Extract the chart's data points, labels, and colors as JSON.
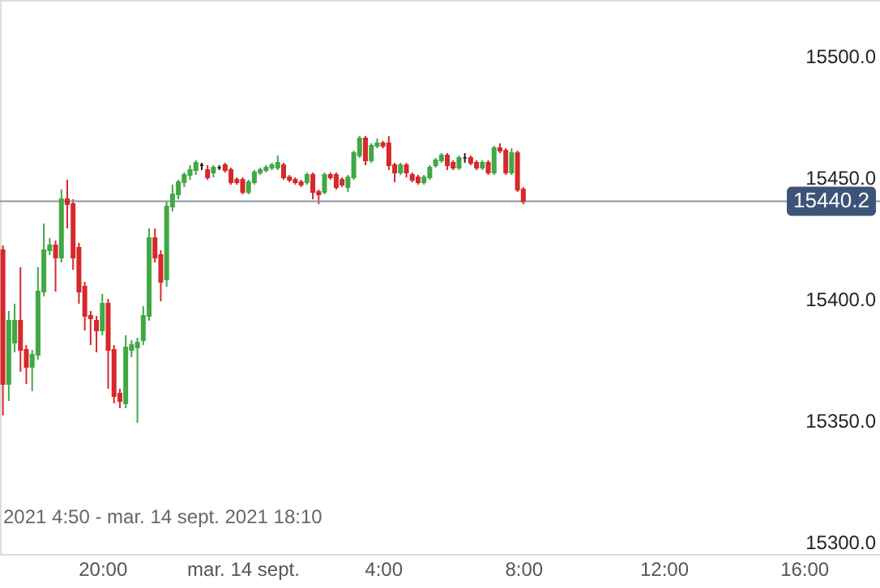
{
  "chart_data": {
    "type": "candlestick",
    "x": [
      "2021-09-13T17:10",
      "2021-09-13T17:20",
      "2021-09-13T17:30",
      "2021-09-13T17:40",
      "2021-09-13T17:50",
      "2021-09-13T18:00",
      "2021-09-13T18:10",
      "2021-09-13T18:20",
      "2021-09-13T18:30",
      "2021-09-13T18:40",
      "2021-09-13T18:50",
      "2021-09-13T19:00",
      "2021-09-13T19:10",
      "2021-09-13T19:20",
      "2021-09-13T19:30",
      "2021-09-13T19:40",
      "2021-09-13T19:50",
      "2021-09-13T20:00",
      "2021-09-13T20:10",
      "2021-09-13T20:20",
      "2021-09-13T20:30",
      "2021-09-13T20:40",
      "2021-09-13T20:50",
      "2021-09-13T21:00",
      "2021-09-13T21:10",
      "2021-09-13T21:20",
      "2021-09-13T21:30",
      "2021-09-13T21:40",
      "2021-09-13T21:50",
      "2021-09-13T22:00",
      "2021-09-13T22:10",
      "2021-09-13T22:20",
      "2021-09-13T22:30",
      "2021-09-13T22:40",
      "2021-09-13T22:50",
      "2021-09-13T23:00",
      "2021-09-13T23:10",
      "2021-09-13T23:20",
      "2021-09-13T23:30",
      "2021-09-13T23:40",
      "2021-09-13T23:50",
      "2021-09-14T00:00",
      "2021-09-14T00:10",
      "2021-09-14T00:20",
      "2021-09-14T00:30",
      "2021-09-14T00:40",
      "2021-09-14T00:50",
      "2021-09-14T01:00",
      "2021-09-14T01:10",
      "2021-09-14T01:20",
      "2021-09-14T01:30",
      "2021-09-14T01:40",
      "2021-09-14T01:50",
      "2021-09-14T02:00",
      "2021-09-14T02:10",
      "2021-09-14T02:20",
      "2021-09-14T02:30",
      "2021-09-14T02:40",
      "2021-09-14T02:50",
      "2021-09-14T03:00",
      "2021-09-14T03:10",
      "2021-09-14T03:20",
      "2021-09-14T03:30",
      "2021-09-14T03:40",
      "2021-09-14T03:50",
      "2021-09-14T04:00",
      "2021-09-14T04:10",
      "2021-09-14T04:20",
      "2021-09-14T04:30",
      "2021-09-14T04:40",
      "2021-09-14T04:50",
      "2021-09-14T05:00",
      "2021-09-14T05:10",
      "2021-09-14T05:20",
      "2021-09-14T05:30",
      "2021-09-14T05:40",
      "2021-09-14T05:50",
      "2021-09-14T06:00",
      "2021-09-14T06:10",
      "2021-09-14T06:20",
      "2021-09-14T06:30",
      "2021-09-14T06:40",
      "2021-09-14T06:50",
      "2021-09-14T07:00",
      "2021-09-14T07:10",
      "2021-09-14T07:20",
      "2021-09-14T07:30",
      "2021-09-14T07:40",
      "2021-09-14T07:50",
      "2021-09-14T08:00"
    ],
    "ohlc": [
      [
        15420,
        15422,
        15352,
        15365
      ],
      [
        15365,
        15395,
        15358,
        15391
      ],
      [
        15382,
        15398,
        15378,
        15391
      ],
      [
        15391,
        15413,
        15370,
        15379
      ],
      [
        15379,
        15381,
        15365,
        15372
      ],
      [
        15372,
        15379,
        15362,
        15377
      ],
      [
        15377,
        15413,
        15375,
        15403
      ],
      [
        15403,
        15431,
        15401,
        15420
      ],
      [
        15420,
        15425,
        15418,
        15422
      ],
      [
        15422,
        15424,
        15403,
        15417
      ],
      [
        15417,
        15445,
        15415,
        15441
      ],
      [
        15441,
        15449,
        15429,
        15439
      ],
      [
        15439,
        15441,
        15412,
        15417
      ],
      [
        15421,
        15423,
        15398,
        15403
      ],
      [
        15405,
        15407,
        15387,
        15393
      ],
      [
        15393,
        15395,
        15381,
        15392
      ],
      [
        15391,
        15393,
        15378,
        15387
      ],
      [
        15387,
        15402,
        15385,
        15398
      ],
      [
        15398,
        15400,
        15363,
        15379
      ],
      [
        15379,
        15381,
        15357,
        15360
      ],
      [
        15361,
        15363,
        15355,
        15358
      ],
      [
        15357,
        15385,
        15355,
        15380
      ],
      [
        15379,
        15383,
        15376,
        15381
      ],
      [
        15380,
        15384,
        15349,
        15382
      ],
      [
        15383,
        15397,
        15381,
        15393
      ],
      [
        15393,
        15429,
        15391,
        15425
      ],
      [
        15425,
        15429,
        15415,
        15417
      ],
      [
        15418,
        15420,
        15399,
        15407
      ],
      [
        15408,
        15440,
        15405,
        15438
      ],
      [
        15438,
        15447,
        15436,
        15443
      ],
      [
        15443,
        15449,
        15441,
        15448
      ],
      [
        15448,
        15452,
        15446,
        15451
      ],
      [
        15451,
        15455,
        15449,
        15453
      ],
      [
        15453,
        15457,
        15451,
        15456
      ],
      [
        15455,
        15456,
        15453,
        15455
      ],
      [
        15453,
        15455,
        15449,
        15450
      ],
      [
        15452,
        15455,
        15450,
        15454
      ],
      [
        15454,
        15455,
        15453,
        15454
      ],
      [
        15455,
        15456,
        15452,
        15453
      ],
      [
        15453,
        15454,
        15447,
        15448
      ],
      [
        15449,
        15450,
        15447,
        15448
      ],
      [
        15449,
        15450,
        15443,
        15444
      ],
      [
        15444,
        15449,
        15443,
        15448
      ],
      [
        15448,
        15453,
        15447,
        15452
      ],
      [
        15452,
        15454,
        15451,
        15453
      ],
      [
        15453,
        15455,
        15452,
        15454
      ],
      [
        15454,
        15456,
        15453,
        15455
      ],
      [
        15454,
        15459,
        15453,
        15456
      ],
      [
        15455,
        15456,
        15449,
        15450
      ],
      [
        15450,
        15451,
        15448,
        15449
      ],
      [
        15449,
        15450,
        15447,
        15448
      ],
      [
        15448,
        15449,
        15446,
        15447
      ],
      [
        15448,
        15452,
        15447,
        15451
      ],
      [
        15451,
        15452,
        15441,
        15444
      ],
      [
        15444,
        15445,
        15439,
        15443
      ],
      [
        15444,
        15452,
        15443,
        15451
      ],
      [
        15451,
        15452,
        15449,
        15450
      ],
      [
        15451,
        15452,
        15445,
        15446
      ],
      [
        15449,
        15450,
        15446,
        15447
      ],
      [
        15446,
        15451,
        15444,
        15450
      ],
      [
        15450,
        15461,
        15449,
        15460
      ],
      [
        15459,
        15467,
        15458,
        15466
      ],
      [
        15466,
        15467,
        15455,
        15457
      ],
      [
        15457,
        15464,
        15456,
        15463
      ],
      [
        15463,
        15466,
        15462,
        15464
      ],
      [
        15464,
        15465,
        15462,
        15463
      ],
      [
        15464,
        15467,
        15453,
        15455
      ],
      [
        15455,
        15456,
        15448,
        15452
      ],
      [
        15452,
        15456,
        15451,
        15455
      ],
      [
        15455,
        15456,
        15450,
        15452
      ],
      [
        15451,
        15452,
        15448,
        15449
      ],
      [
        15450,
        15451,
        15447,
        15448
      ],
      [
        15448,
        15451,
        15447,
        15450
      ],
      [
        15450,
        15455,
        15449,
        15454
      ],
      [
        15455,
        15458,
        15454,
        15457
      ],
      [
        15457,
        15460,
        15456,
        15459
      ],
      [
        15459,
        15460,
        15453,
        15455
      ],
      [
        15456,
        15457,
        15453,
        15454
      ],
      [
        15454,
        15459,
        15453,
        15458
      ],
      [
        15458,
        15460,
        15456,
        15458
      ],
      [
        15458,
        15459,
        15455,
        15456
      ],
      [
        15456,
        15457,
        15453,
        15454
      ],
      [
        15454,
        15457,
        15453,
        15456
      ],
      [
        15456,
        15457,
        15451,
        15452
      ],
      [
        15452,
        15463,
        15451,
        15462
      ],
      [
        15462,
        15464,
        15460,
        15461
      ],
      [
        15461,
        15462,
        15451,
        15452
      ],
      [
        15452,
        15462,
        15451,
        15460
      ],
      [
        15460,
        15461,
        15444,
        15445
      ],
      [
        15445,
        15446,
        15439,
        15440.2
      ]
    ],
    "colors": [
      "#d7282b",
      "#41a844",
      "#41a844",
      "#d7282b",
      "#d7282b",
      "#41a844",
      "#41a844",
      "#41a844",
      "#41a844",
      "#d7282b",
      "#41a844",
      "#d7282b",
      "#d7282b",
      "#d7282b",
      "#d7282b",
      "#d7282b",
      "#d7282b",
      "#41a844",
      "#d7282b",
      "#d7282b",
      "#d7282b",
      "#41a844",
      "#41a844",
      "#41a844",
      "#41a844",
      "#41a844",
      "#d7282b",
      "#d7282b",
      "#41a844",
      "#41a844",
      "#41a844",
      "#41a844",
      "#41a844",
      "#41a844",
      "#222222",
      "#d7282b",
      "#41a844",
      "#222222",
      "#d7282b",
      "#d7282b",
      "#d7282b",
      "#d7282b",
      "#41a844",
      "#41a844",
      "#41a844",
      "#41a844",
      "#41a844",
      "#41a844",
      "#d7282b",
      "#d7282b",
      "#d7282b",
      "#d7282b",
      "#41a844",
      "#d7282b",
      "#d7282b",
      "#41a844",
      "#d7282b",
      "#d7282b",
      "#d7282b",
      "#41a844",
      "#41a844",
      "#41a844",
      "#d7282b",
      "#41a844",
      "#41a844",
      "#d7282b",
      "#d7282b",
      "#d7282b",
      "#41a844",
      "#d7282b",
      "#d7282b",
      "#d7282b",
      "#41a844",
      "#41a844",
      "#41a844",
      "#41a844",
      "#d7282b",
      "#d7282b",
      "#41a844",
      "#222222",
      "#d7282b",
      "#d7282b",
      "#41a844",
      "#d7282b",
      "#41a844",
      "#d7282b",
      "#d7282b",
      "#41a844",
      "#d7282b",
      "#d7282b"
    ],
    "xlim": [
      "2021-09-13T17:05",
      "2021-09-14T18:10"
    ],
    "xticks": [
      {
        "value": "2021-09-13T20:00",
        "label": "20:00"
      },
      {
        "value": "2021-09-14T00:00",
        "label": "mar. 14 sept."
      },
      {
        "value": "2021-09-14T04:00",
        "label": "4:00"
      },
      {
        "value": "2021-09-14T08:00",
        "label": "8:00"
      },
      {
        "value": "2021-09-14T12:00",
        "label": "12:00"
      },
      {
        "value": "2021-09-14T16:00",
        "label": "16:00"
      }
    ],
    "ylim": [
      15295,
      15523
    ],
    "yticks": [
      {
        "value": 15300,
        "label": "15300.0"
      },
      {
        "value": 15350,
        "label": "15350.0"
      },
      {
        "value": 15400,
        "label": "15400.0"
      },
      {
        "value": 15450,
        "label": "15450.0"
      },
      {
        "value": 15500,
        "label": "15500.0"
      }
    ],
    "ref_lines": [
      {
        "axis": "y",
        "value": 15440.2,
        "label": "15440.2",
        "color": "#8e949c"
      }
    ],
    "annotations": [
      "2021 4:50 - mar. 14 sept. 2021 18:10"
    ],
    "grid": false
  }
}
